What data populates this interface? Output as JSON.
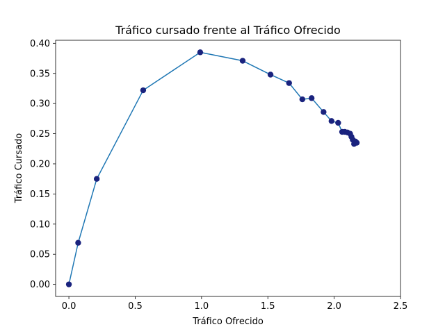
{
  "chart_data": {
    "type": "line",
    "title": "Tráfico cursado frente al Tráfico Ofrecido",
    "xlabel": "Tráfico Ofrecido",
    "ylabel": "Tráfico Cursado",
    "xlim": [
      -0.1,
      2.5
    ],
    "ylim": [
      -0.02,
      0.405
    ],
    "xticks": [
      0.0,
      0.5,
      1.0,
      1.5,
      2.0,
      2.5
    ],
    "xtick_labels": [
      "0.0",
      "0.5",
      "1.0",
      "1.5",
      "2.0",
      "2.5"
    ],
    "yticks": [
      0.0,
      0.05,
      0.1,
      0.15,
      0.2,
      0.25,
      0.3,
      0.35,
      0.4
    ],
    "ytick_labels": [
      "0.00",
      "0.05",
      "0.10",
      "0.15",
      "0.20",
      "0.25",
      "0.30",
      "0.35",
      "0.40"
    ],
    "grid": false,
    "line_color": "#1f77b4",
    "marker_color": "#1a237e",
    "series": [
      {
        "x": [
          0.0,
          0.07,
          0.21,
          0.56,
          0.99,
          1.31,
          1.52,
          1.66,
          1.76,
          1.83,
          1.92,
          1.98,
          2.03,
          2.06,
          2.08,
          2.1,
          2.12,
          2.13,
          2.14,
          2.15,
          2.16,
          2.17
        ],
        "y": [
          0.0,
          0.069,
          0.175,
          0.322,
          0.385,
          0.371,
          0.348,
          0.334,
          0.307,
          0.309,
          0.286,
          0.271,
          0.268,
          0.253,
          0.253,
          0.252,
          0.25,
          0.245,
          0.24,
          0.233,
          0.237,
          0.235
        ]
      }
    ]
  }
}
